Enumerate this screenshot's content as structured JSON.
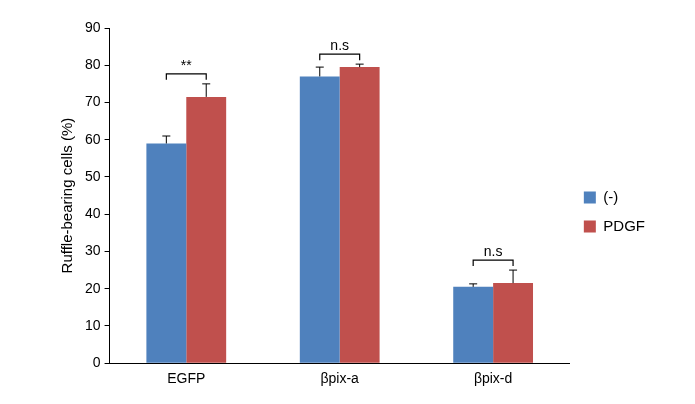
{
  "chart_data": {
    "type": "bar",
    "y_label": "Ruffle-bearing cells (%)",
    "categories": [
      "EGFP",
      "βpix-a",
      "βpix-d"
    ],
    "series": [
      {
        "name": "(-)",
        "color": "#4f81bd",
        "values": [
          59,
          77,
          20.5
        ],
        "errors": [
          2,
          2.5,
          0.8
        ]
      },
      {
        "name": "PDGF",
        "color": "#c0504d",
        "values": [
          71.5,
          79.5,
          21.5
        ],
        "errors": [
          3.5,
          0.8,
          3.5
        ]
      }
    ],
    "ylim": [
      0,
      90
    ],
    "yticks": [
      0,
      10,
      20,
      30,
      40,
      50,
      60,
      70,
      80,
      90
    ],
    "grid": false,
    "legend": "right",
    "annotations": [
      {
        "category": "EGFP",
        "text": "**"
      },
      {
        "category": "βpix-a",
        "text": "n.s"
      },
      {
        "category": "βpix-d",
        "text": "n.s"
      }
    ]
  }
}
